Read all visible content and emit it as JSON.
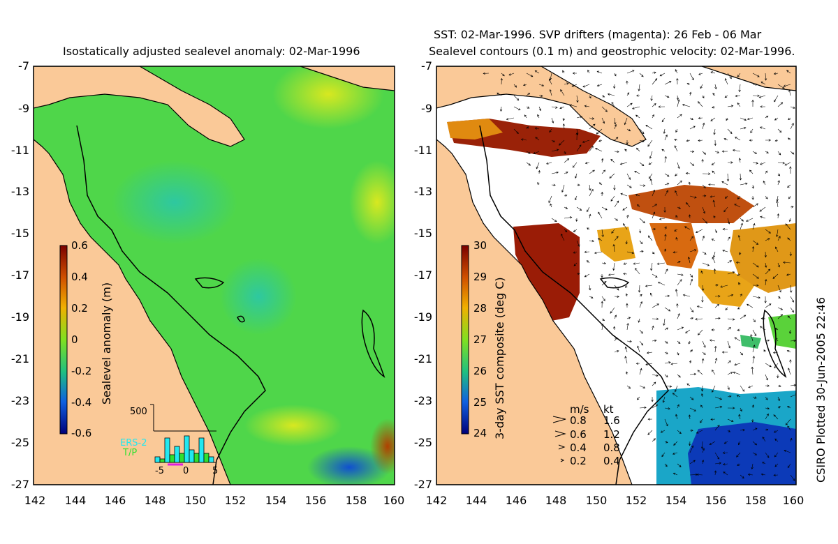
{
  "left_panel": {
    "title": "Isostatically adjusted sealevel anomaly: 02-Mar-1996",
    "colorbar": {
      "label": "Sealevel anomaly (m)",
      "ticks": [
        "0.6",
        "0.4",
        "0.2",
        "0",
        "-0.2",
        "-0.4",
        "-0.6"
      ]
    },
    "histogram": {
      "ymax_label": "500",
      "legend_ers": "ERS-2",
      "legend_tp": "T/P",
      "xticks": [
        "-5",
        "0",
        "5"
      ],
      "ers_color": "#22e8f0",
      "tp_color": "#30e030"
    }
  },
  "right_panel": {
    "title_line1": "SST: 02-Mar-1996. SVP drifters (magenta): 26 Feb - 06 Mar",
    "title_line2": "Sealevel contours (0.1 m) and geostrophic velocity: 02-Mar-1996.",
    "colorbar": {
      "label": "3-day SST composite (deg C)",
      "ticks": [
        "30",
        "29",
        "28",
        "27",
        "26",
        "25",
        "24"
      ]
    },
    "velocity_legend": {
      "header_ms": "m/s",
      "header_kt": "kt",
      "rows": [
        {
          "ms": "0.8",
          "kt": "1.6"
        },
        {
          "ms": "0.6",
          "kt": "1.2"
        },
        {
          "ms": "0.4",
          "kt": "0.8"
        },
        {
          "ms": "0.2",
          "kt": "0.4"
        }
      ]
    }
  },
  "axes": {
    "y_ticks": [
      "-7",
      "-9",
      "-11",
      "-13",
      "-15",
      "-17",
      "-19",
      "-21",
      "-23",
      "-25",
      "-27"
    ],
    "x_ticks": [
      "142",
      "144",
      "146",
      "148",
      "150",
      "152",
      "154",
      "156",
      "158",
      "160"
    ]
  },
  "credit": "CSIRO Plotted 30-Jun-2005 22:46",
  "colors": {
    "land": "#fac998",
    "ocean_green": "#4fd64a",
    "sst_white": "#ffffff"
  }
}
